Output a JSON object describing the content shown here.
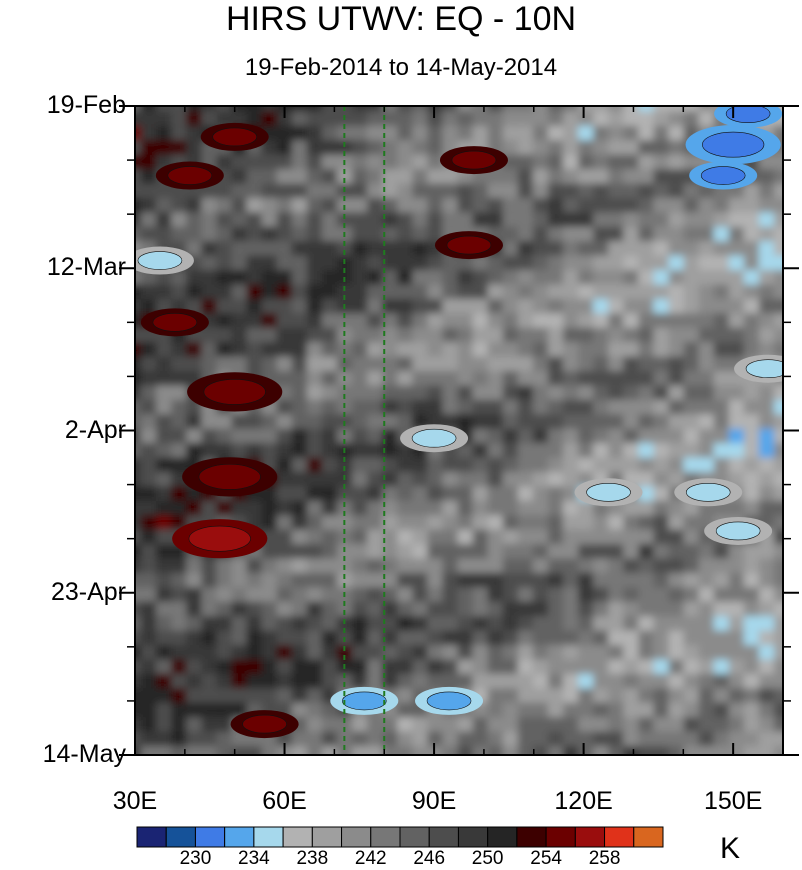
{
  "chart_data": {
    "type": "heatmap",
    "title": "HIRS UTWV: EQ - 10N",
    "subtitle": "19-Feb-2014 to 14-May-2014",
    "x_axis": {
      "range": [
        30,
        160
      ],
      "ticks": [
        30,
        60,
        90,
        120,
        150
      ],
      "tick_labels": [
        "30E",
        "60E",
        "90E",
        "120E",
        "150E"
      ]
    },
    "y_axis": {
      "range": [
        "2014-02-19",
        "2014-05-14"
      ],
      "inverted": true,
      "ticks": [
        "2014-02-19",
        "2014-03-12",
        "2014-04-02",
        "2014-04-23",
        "2014-05-14"
      ],
      "tick_labels": [
        "19-Feb",
        "12-Mar",
        "2-Apr",
        "23-Apr",
        "14-May"
      ]
    },
    "colorbar": {
      "unit": "K",
      "levels": [
        228,
        230,
        232,
        234,
        236,
        238,
        240,
        242,
        244,
        246,
        248,
        250,
        252,
        254,
        256,
        258,
        260
      ],
      "labels": [
        "230",
        "234",
        "238",
        "242",
        "246",
        "250",
        "254",
        "258"
      ],
      "colors": [
        "#1a2473",
        "#155299",
        "#3f7be6",
        "#55a6eb",
        "#a6d8ec",
        "#b2b2b2",
        "#9f9f9f",
        "#8b8b8b",
        "#777777",
        "#626262",
        "#4d4d4d",
        "#393939",
        "#252525",
        "#3d0000",
        "#6b0000",
        "#9a0d0d",
        "#e0321a",
        "#d9661f"
      ]
    },
    "reference_lines": {
      "longitudes": [
        72,
        80
      ],
      "style": "dashed",
      "color": "#1f7a1f"
    },
    "features": [
      {
        "lon": 47,
        "date": "2014-04-16",
        "value": 256,
        "kind": "moist"
      },
      {
        "lon": 50,
        "date": "2014-03-28",
        "value": 255,
        "kind": "moist"
      },
      {
        "lon": 49,
        "date": "2014-04-08",
        "value": 255,
        "kind": "moist"
      },
      {
        "lon": 50,
        "date": "2014-02-23",
        "value": 254,
        "kind": "moist"
      },
      {
        "lon": 41,
        "date": "2014-02-28",
        "value": 254,
        "kind": "moist"
      },
      {
        "lon": 98,
        "date": "2014-02-26",
        "value": 254,
        "kind": "moist"
      },
      {
        "lon": 97,
        "date": "2014-03-09",
        "value": 254,
        "kind": "moist"
      },
      {
        "lon": 56,
        "date": "2014-05-10",
        "value": 254,
        "kind": "moist"
      },
      {
        "lon": 38,
        "date": "2014-03-19",
        "value": 254,
        "kind": "moist"
      },
      {
        "lon": 150,
        "date": "2014-02-24",
        "value": 230,
        "kind": "dry"
      },
      {
        "lon": 153,
        "date": "2014-02-20",
        "value": 231,
        "kind": "dry"
      },
      {
        "lon": 148,
        "date": "2014-02-28",
        "value": 231,
        "kind": "dry"
      },
      {
        "lon": 76,
        "date": "2014-05-07",
        "value": 232,
        "kind": "dry"
      },
      {
        "lon": 93,
        "date": "2014-05-07",
        "value": 232,
        "kind": "dry"
      },
      {
        "lon": 90,
        "date": "2014-04-03",
        "value": 234,
        "kind": "dry"
      },
      {
        "lon": 145,
        "date": "2014-04-10",
        "value": 234,
        "kind": "dry"
      },
      {
        "lon": 151,
        "date": "2014-04-15",
        "value": 234,
        "kind": "dry"
      },
      {
        "lon": 157,
        "date": "2014-03-25",
        "value": 235,
        "kind": "dry"
      },
      {
        "lon": 125,
        "date": "2014-04-10",
        "value": 235,
        "kind": "dry"
      },
      {
        "lon": 35,
        "date": "2014-03-11",
        "value": 235,
        "kind": "dry"
      }
    ],
    "grid": false
  }
}
